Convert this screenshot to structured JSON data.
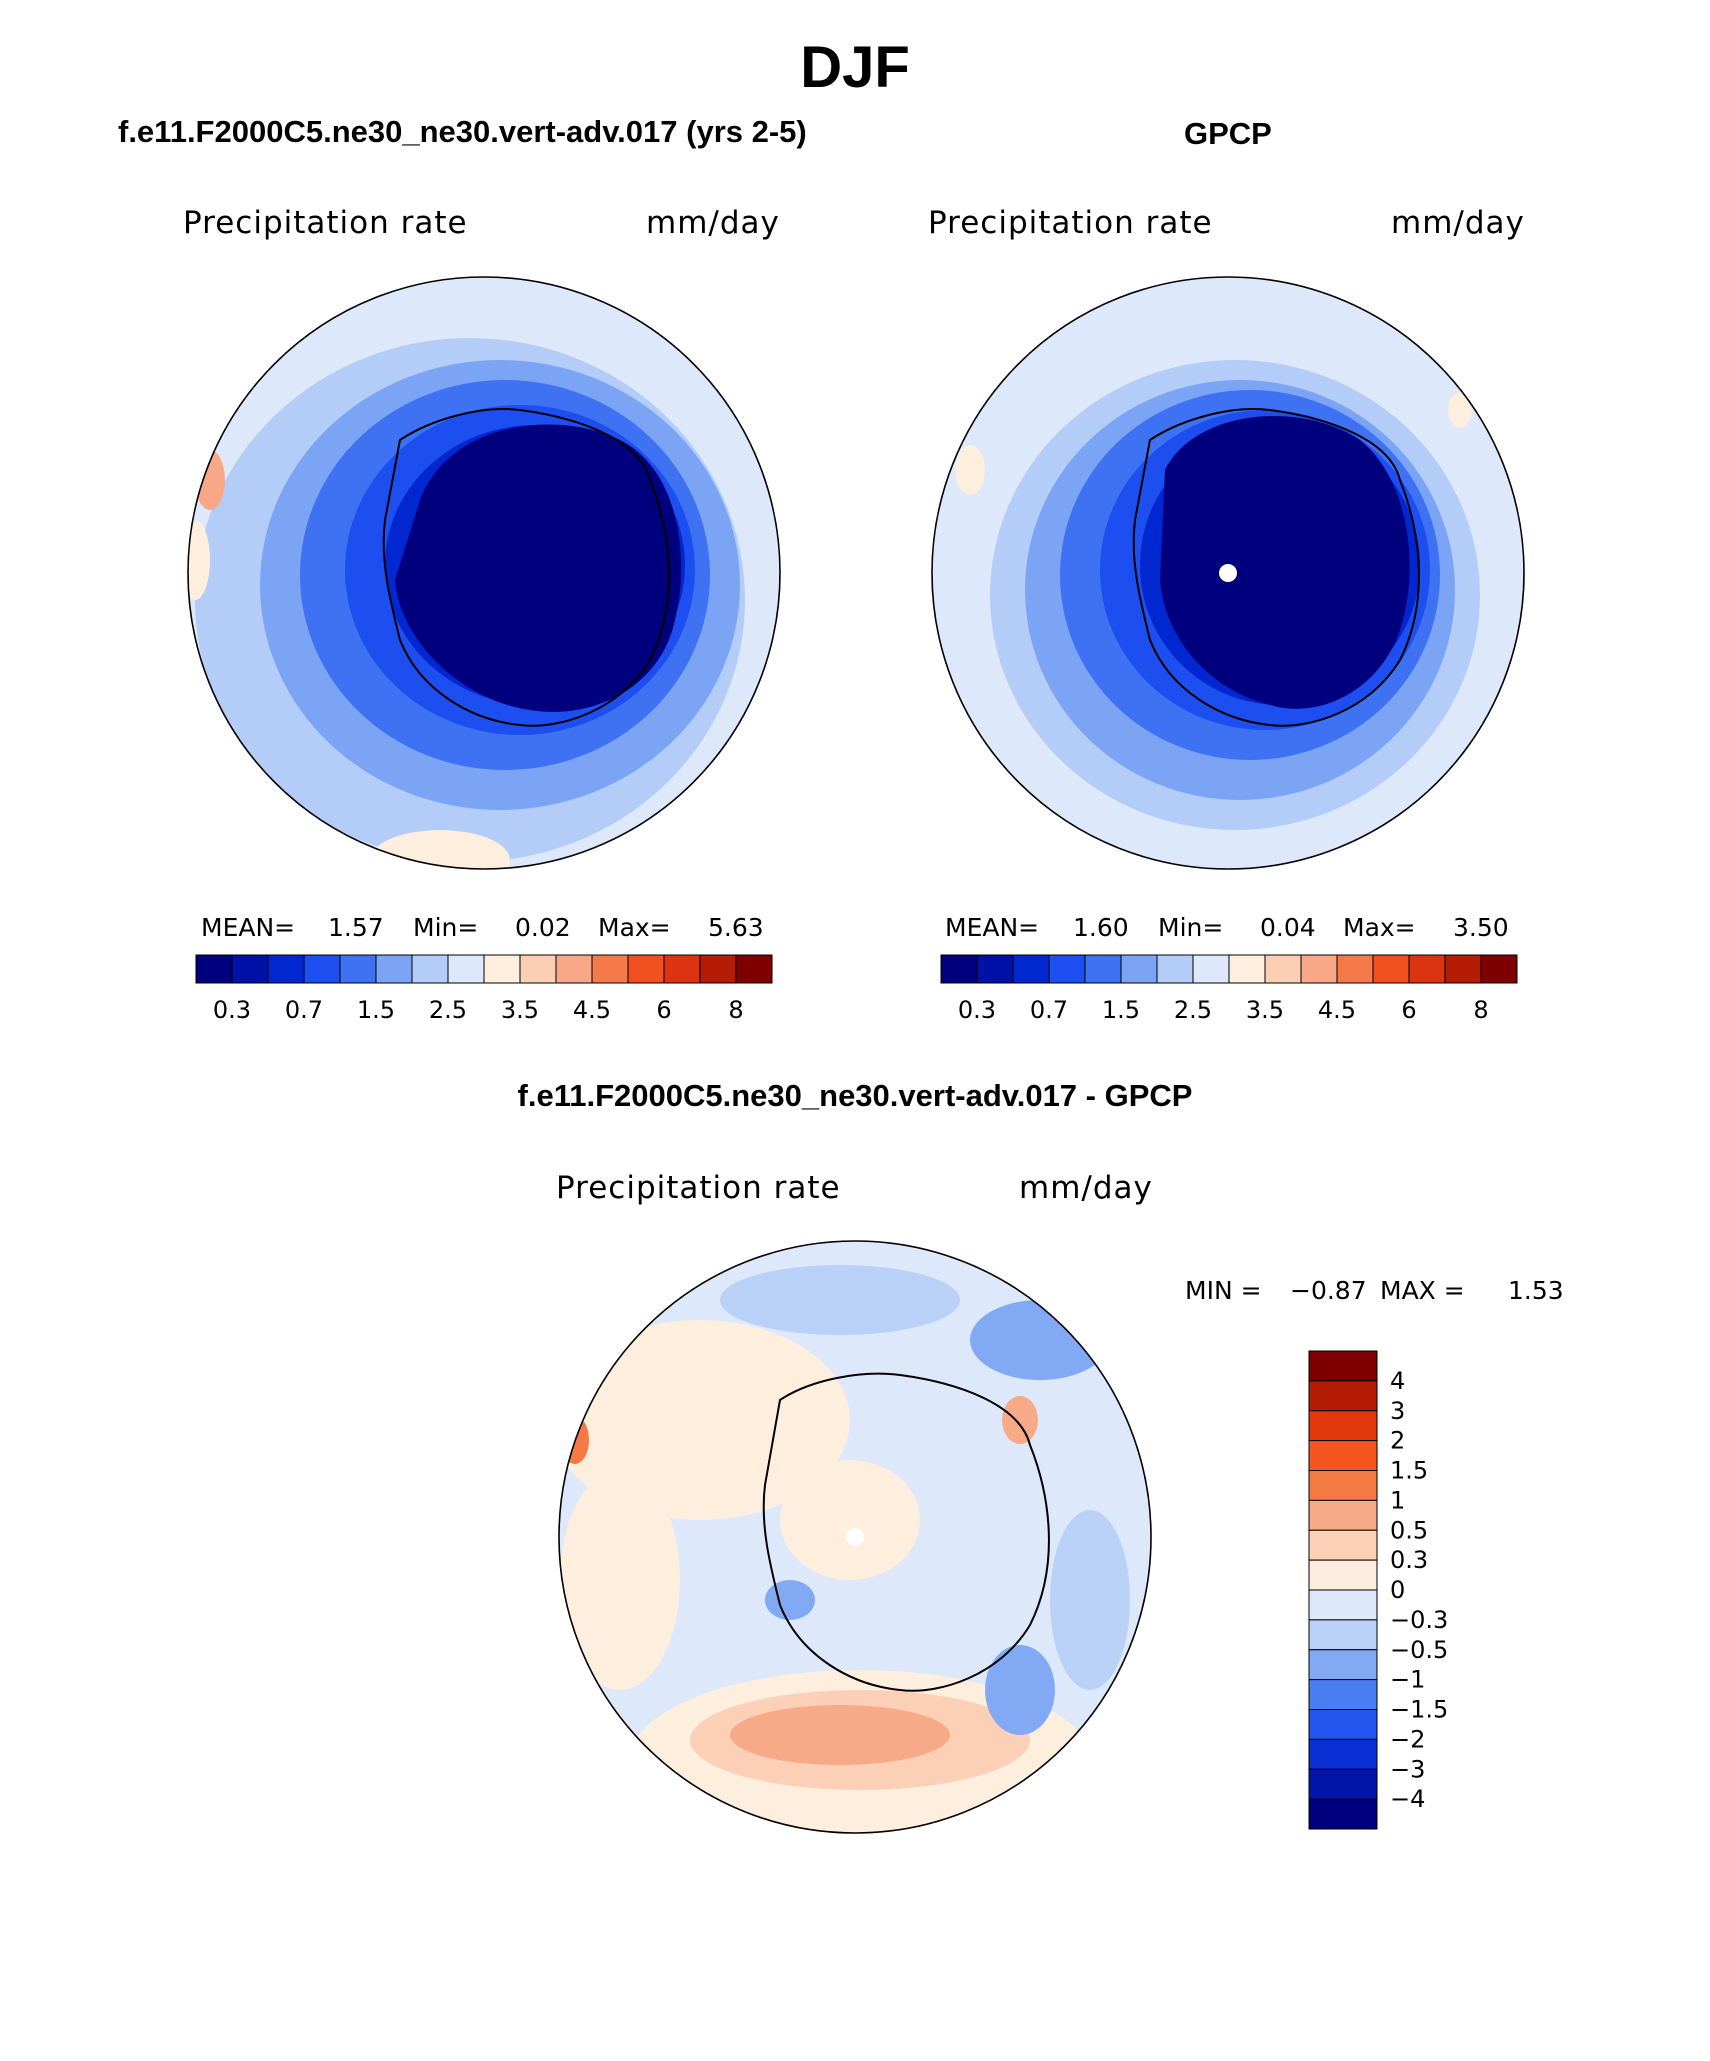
{
  "title": "DJF",
  "panels": [
    {
      "id": "model",
      "heading": "f.e11.F2000C5.ne30_ne30.vert-adv.017 (yrs 2-5)",
      "left_label": "Precipitation rate",
      "right_label": "mm/day",
      "stats": {
        "mean_label": "MEAN=",
        "mean": "1.57",
        "min_label": "Min=",
        "min": "0.02",
        "max_label": "Max=",
        "max": "5.63"
      }
    },
    {
      "id": "obs",
      "heading": "GPCP",
      "left_label": "Precipitation rate",
      "right_label": "mm/day",
      "stats": {
        "mean_label": "MEAN=",
        "mean": "1.60",
        "min_label": "Min=",
        "min": "0.04",
        "max_label": "Max=",
        "max": "3.50"
      }
    },
    {
      "id": "diff",
      "heading": "f.e11.F2000C5.ne30_ne30.vert-adv.017 - GPCP",
      "left_label": "Precipitation rate",
      "right_label": "mm/day",
      "stats": {
        "min_label": "MIN =",
        "min": "−0.87",
        "max_label": "MAX =",
        "max": "1.53"
      }
    }
  ],
  "abs_colorbar": {
    "colors": [
      "#00007f",
      "#0011a8",
      "#0027d0",
      "#1d4ef0",
      "#3f72f2",
      "#7ba4f4",
      "#b3ccf8",
      "#dde9fb",
      "#fdeede",
      "#fbcfb4",
      "#f8a886",
      "#f57a4a",
      "#f3501f",
      "#dc3410",
      "#b41c05",
      "#7f0000"
    ],
    "tick_labels": [
      "0.3",
      "0.7",
      "1.5",
      "2.5",
      "3.5",
      "4.5",
      "6",
      "8"
    ]
  },
  "diff_colorbar": {
    "colors": [
      "#7f0000",
      "#b41c05",
      "#e1380e",
      "#f5561f",
      "#f47a44",
      "#f7aa88",
      "#fbd0b6",
      "#fdece0",
      "#dde9fb",
      "#b9d0f7",
      "#82aaf4",
      "#4a7cf2",
      "#2356ef",
      "#0a2fd4",
      "#0016a8",
      "#00007f"
    ],
    "tick_labels": [
      "4",
      "3",
      "2",
      "1.5",
      "1",
      "0.5",
      "0.3",
      "0",
      "−0.3",
      "−0.5",
      "−1",
      "−1.5",
      "−2",
      "−3",
      "−4"
    ]
  },
  "chart_data": [
    {
      "type": "heatmap",
      "title": "f.e11.F2000C5.ne30_ne30.vert-adv.017 (yrs 2-5)",
      "variable": "Precipitation rate",
      "units": "mm/day",
      "projection": "south polar stereographic",
      "mean": 1.57,
      "min": 0.02,
      "max": 5.63,
      "contour_levels": [
        0.3,
        0.5,
        0.7,
        1,
        1.5,
        2,
        2.5,
        3,
        3.5,
        4,
        4.5,
        5,
        6,
        7,
        8
      ]
    },
    {
      "type": "heatmap",
      "title": "GPCP",
      "variable": "Precipitation rate",
      "units": "mm/day",
      "projection": "south polar stereographic",
      "mean": 1.6,
      "min": 0.04,
      "max": 3.5,
      "contour_levels": [
        0.3,
        0.5,
        0.7,
        1,
        1.5,
        2,
        2.5,
        3,
        3.5,
        4,
        4.5,
        5,
        6,
        7,
        8
      ]
    },
    {
      "type": "heatmap",
      "title": "f.e11.F2000C5.ne30_ne30.vert-adv.017 - GPCP",
      "variable": "Precipitation rate",
      "units": "mm/day",
      "projection": "south polar stereographic",
      "min": -0.87,
      "max": 1.53,
      "contour_levels": [
        -4,
        -3,
        -2,
        -1.5,
        -1,
        -0.5,
        -0.3,
        0,
        0.3,
        0.5,
        1,
        1.5,
        2,
        3,
        4
      ]
    }
  ]
}
